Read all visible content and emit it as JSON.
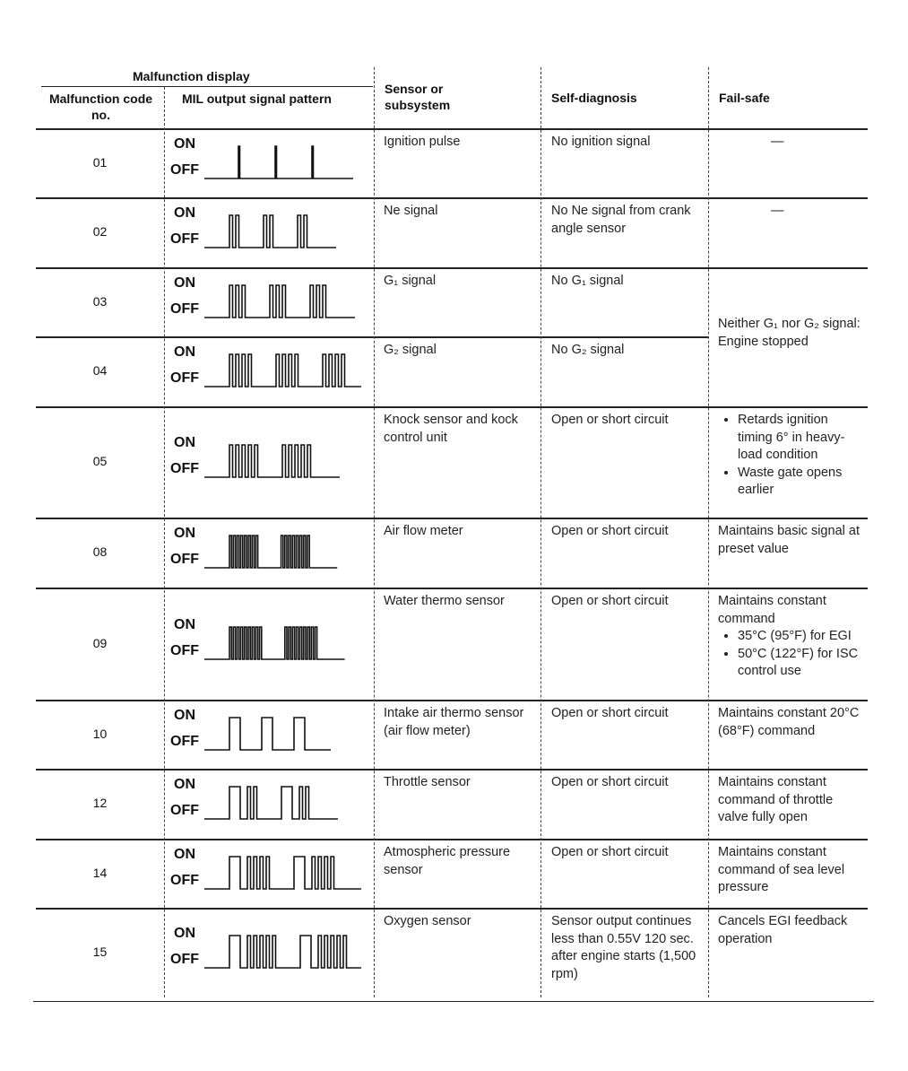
{
  "header": {
    "group": "Malfunction display",
    "code": "Malfunction code no.",
    "pattern": "MIL output signal pattern",
    "sensor": "Sensor or subsystem",
    "selfdiag": "Self-diagnosis",
    "failsafe": "Fail-safe"
  },
  "signal_labels": {
    "on": "ON",
    "off": "OFF"
  },
  "rows": [
    {
      "code": "01",
      "pattern": {
        "long": 0,
        "short": 1,
        "repeats": 3
      },
      "sensor": "Ignition pulse",
      "selfdiag": "No ignition signal",
      "failsafe": "—"
    },
    {
      "code": "02",
      "pattern": {
        "long": 0,
        "short": 2,
        "repeats": 3
      },
      "sensor": "Ne signal",
      "selfdiag": "No Ne signal from crank angle sensor",
      "failsafe": "—"
    },
    {
      "code": "03",
      "pattern": {
        "long": 0,
        "short": 3,
        "repeats": 3
      },
      "sensor": "G₁ signal",
      "selfdiag": "No G₁ signal"
    },
    {
      "code": "04",
      "pattern": {
        "long": 0,
        "short": 4,
        "repeats": 3
      },
      "sensor": "G₂ signal",
      "selfdiag": "No G₂ signal"
    },
    {
      "code": "05",
      "pattern": {
        "long": 0,
        "short": 5,
        "repeats": 2
      },
      "sensor": "Knock sensor and kock control unit",
      "selfdiag": "Open or short circuit",
      "failsafe_bullets": [
        "Retards ignition timing 6° in heavy-load condition",
        "Waste gate opens earlier"
      ]
    },
    {
      "code": "08",
      "pattern": {
        "long": 0,
        "short": 8,
        "repeats": 2
      },
      "sensor": "Air flow meter",
      "selfdiag": "Open or short circuit",
      "failsafe": "Maintains basic signal at preset value"
    },
    {
      "code": "09",
      "pattern": {
        "long": 0,
        "short": 9,
        "repeats": 2
      },
      "sensor": "Water thermo sensor",
      "selfdiag": "Open or short circuit",
      "failsafe": "Maintains constant command",
      "failsafe_bullets": [
        "35°C (95°F) for EGI",
        "50°C (122°F) for ISC control use"
      ]
    },
    {
      "code": "10",
      "pattern": {
        "long": 1,
        "short": 0,
        "repeats": 3
      },
      "sensor": "Intake air thermo sensor (air flow meter)",
      "selfdiag": "Open or short circuit",
      "failsafe": "Maintains constant 20°C (68°F) command"
    },
    {
      "code": "12",
      "pattern": {
        "long": 1,
        "short": 2,
        "repeats": 2
      },
      "sensor": "Throttle sensor",
      "selfdiag": "Open or short circuit",
      "failsafe": "Maintains constant command of throttle valve fully open"
    },
    {
      "code": "14",
      "pattern": {
        "long": 1,
        "short": 4,
        "repeats": 2
      },
      "sensor": "Atmospheric pressure sensor",
      "selfdiag": "Open or short circuit",
      "failsafe": "Maintains constant command of sea level pressure"
    },
    {
      "code": "15",
      "pattern": {
        "long": 1,
        "short": 5,
        "repeats": 2
      },
      "sensor": "Oxygen sensor",
      "selfdiag": "Sensor output continues less than 0.55V 120 sec. after engine starts (1,500 rpm)",
      "failsafe": "Cancels EGI feedback operation"
    }
  ],
  "merged_failsafe_03_04": "Neither G₁ nor G₂ signal: Engine stopped"
}
